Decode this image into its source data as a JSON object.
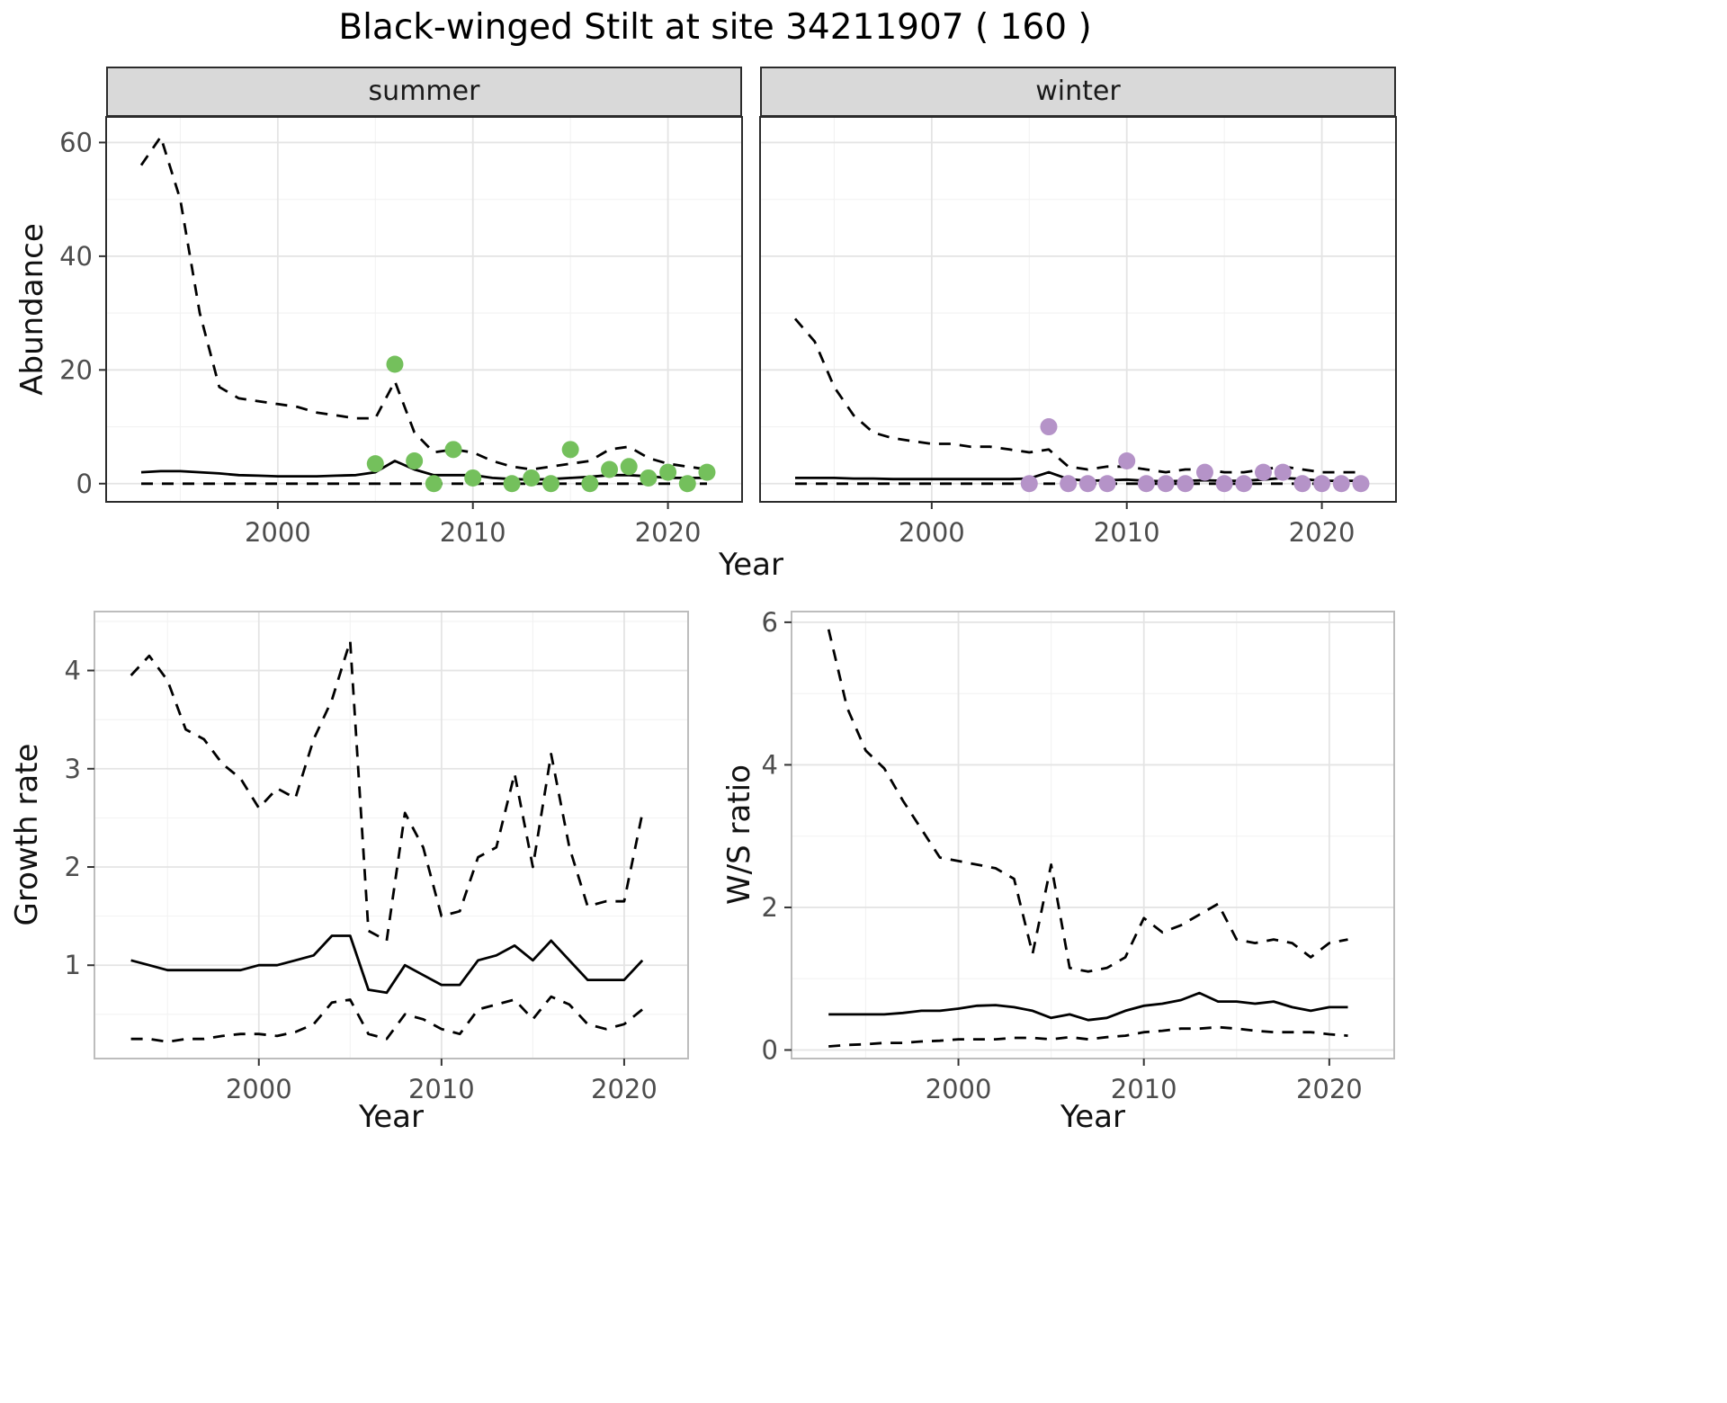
{
  "title": "Black-winged Stilt at site 34211907 ( 160 )",
  "facets": {
    "summer": "summer",
    "winter": "winter"
  },
  "labels": {
    "x": "Year",
    "y_abundance": "Abundance",
    "y_growth": "Growth rate",
    "y_ws": "W/S ratio"
  },
  "colors": {
    "summer_point": "#74c05c",
    "winter_point": "#b593c8",
    "line": "#000000",
    "grid_major": "#e4e4e4",
    "grid_minor": "#f2f2f2",
    "strip_bg": "#d9d9d9",
    "tick": "#333333",
    "tick_label": "#4d4d4d"
  },
  "chart_data": [
    {
      "id": "summer",
      "type": "line",
      "facet_label": "summer",
      "xlabel": "Year",
      "ylabel": "Abundance",
      "xlim": [
        1991.2,
        2023.8
      ],
      "ylim": [
        -3.2,
        64.5
      ],
      "xticks": [
        2000,
        2010,
        2020
      ],
      "yticks": [
        0,
        20,
        40,
        60
      ],
      "grid": true,
      "legend": "none",
      "years": [
        1993,
        1994,
        1995,
        1996,
        1997,
        1998,
        1999,
        2000,
        2001,
        2002,
        2003,
        2004,
        2005,
        2006,
        2007,
        2008,
        2009,
        2010,
        2011,
        2012,
        2013,
        2014,
        2015,
        2016,
        2017,
        2018,
        2019,
        2020,
        2021,
        2022
      ],
      "series": [
        {
          "name": "upper_95ci",
          "style": "dashed",
          "values": [
            56,
            61,
            50,
            30,
            17,
            15,
            14.5,
            14,
            13.5,
            12.5,
            12,
            11.5,
            11.5,
            18,
            9,
            5.5,
            6,
            5.5,
            4,
            3,
            2.5,
            3,
            3.5,
            4,
            6,
            6.5,
            4.5,
            3.5,
            3,
            2.5
          ]
        },
        {
          "name": "median",
          "style": "solid",
          "values": [
            2,
            2.2,
            2.2,
            2,
            1.8,
            1.5,
            1.4,
            1.3,
            1.3,
            1.3,
            1.4,
            1.5,
            2,
            4,
            2.5,
            1.5,
            1.5,
            1.5,
            1,
            0.8,
            0.7,
            0.8,
            1,
            1.2,
            1.5,
            1.5,
            1.3,
            1,
            1,
            1
          ]
        },
        {
          "name": "lower_95ci",
          "style": "dashed",
          "values": [
            0,
            0,
            0,
            0,
            0,
            0,
            0,
            0,
            0,
            0,
            0,
            0,
            0,
            0,
            0,
            0,
            0,
            0,
            0,
            0,
            0,
            0,
            0,
            0,
            0,
            0,
            0,
            0,
            0,
            0
          ]
        }
      ],
      "points": {
        "name": "observed-counts",
        "color_key": "summer_point",
        "x": [
          2005,
          2006,
          2007,
          2008,
          2009,
          2010,
          2012,
          2013,
          2014,
          2015,
          2016,
          2017,
          2018,
          2019,
          2020,
          2021,
          2022
        ],
        "y": [
          3.5,
          21,
          4,
          0,
          6,
          1,
          0,
          1,
          0,
          6,
          0,
          2.5,
          3,
          1,
          2,
          0,
          2
        ]
      }
    },
    {
      "id": "winter",
      "type": "line",
      "facet_label": "winter",
      "xlabel": "Year",
      "ylabel": "Abundance",
      "xlim": [
        1991.2,
        2023.8
      ],
      "ylim": [
        -3.2,
        64.5
      ],
      "xticks": [
        2000,
        2010,
        2020
      ],
      "yticks": [
        0,
        20,
        40,
        60
      ],
      "grid": true,
      "legend": "none",
      "years": [
        1993,
        1994,
        1995,
        1996,
        1997,
        1998,
        1999,
        2000,
        2001,
        2002,
        2003,
        2004,
        2005,
        2006,
        2007,
        2008,
        2009,
        2010,
        2011,
        2012,
        2013,
        2014,
        2015,
        2016,
        2017,
        2018,
        2019,
        2020,
        2021,
        2022
      ],
      "series": [
        {
          "name": "upper_95ci",
          "style": "dashed",
          "values": [
            29,
            25,
            17,
            12,
            9,
            8,
            7.5,
            7,
            7,
            6.5,
            6.5,
            6,
            5.5,
            6,
            3,
            2.5,
            3,
            3,
            2.5,
            2,
            2.5,
            2.5,
            2,
            2,
            2.5,
            3,
            2.5,
            2,
            2,
            2
          ]
        },
        {
          "name": "median",
          "style": "solid",
          "values": [
            1,
            1,
            1,
            0.9,
            0.9,
            0.8,
            0.8,
            0.8,
            0.8,
            0.8,
            0.8,
            0.8,
            0.9,
            2,
            0.8,
            0.5,
            0.6,
            0.7,
            0.5,
            0.4,
            0.5,
            0.6,
            0.5,
            0.5,
            0.7,
            1,
            0.8,
            0.5,
            0.5,
            0.5
          ]
        },
        {
          "name": "lower_95ci",
          "style": "dashed",
          "values": [
            0,
            0,
            0,
            0,
            0,
            0,
            0,
            0,
            0,
            0,
            0,
            0,
            0,
            0,
            0,
            0,
            0,
            0,
            0,
            0,
            0,
            0,
            0,
            0,
            0,
            0,
            0,
            0,
            0,
            0
          ]
        }
      ],
      "points": {
        "name": "observed-counts",
        "color_key": "winter_point",
        "x": [
          2005,
          2006,
          2007,
          2008,
          2009,
          2010,
          2011,
          2012,
          2013,
          2014,
          2015,
          2016,
          2017,
          2018,
          2019,
          2020,
          2021,
          2022
        ],
        "y": [
          0,
          10,
          0,
          0,
          0,
          4,
          0,
          0,
          0,
          2,
          0,
          0,
          2,
          2,
          0,
          0,
          0,
          0
        ]
      }
    },
    {
      "id": "growth",
      "type": "line",
      "facet_label": "",
      "xlabel": "Year",
      "ylabel": "Growth rate",
      "xlim": [
        1991.0,
        2023.5
      ],
      "ylim": [
        0.05,
        4.6
      ],
      "xticks": [
        2000,
        2010,
        2020
      ],
      "yticks": [
        1,
        2,
        3,
        4
      ],
      "grid": true,
      "legend": "none",
      "years": [
        1993,
        1994,
        1995,
        1996,
        1997,
        1998,
        1999,
        2000,
        2001,
        2002,
        2003,
        2004,
        2005,
        2006,
        2007,
        2008,
        2009,
        2010,
        2011,
        2012,
        2013,
        2014,
        2015,
        2016,
        2017,
        2018,
        2019,
        2020,
        2021
      ],
      "series": [
        {
          "name": "upper_95ci",
          "style": "dashed",
          "values": [
            3.95,
            4.15,
            3.9,
            3.4,
            3.3,
            3.05,
            2.9,
            2.6,
            2.8,
            2.7,
            3.3,
            3.7,
            4.3,
            1.35,
            1.25,
            2.55,
            2.2,
            1.5,
            1.55,
            2.1,
            2.2,
            2.95,
            2.0,
            3.15,
            2.2,
            1.6,
            1.65,
            1.65,
            2.55
          ]
        },
        {
          "name": "median",
          "style": "solid",
          "values": [
            1.05,
            1.0,
            0.95,
            0.95,
            0.95,
            0.95,
            0.95,
            1.0,
            1.0,
            1.05,
            1.1,
            1.3,
            1.3,
            0.75,
            0.72,
            1.0,
            0.9,
            0.8,
            0.8,
            1.05,
            1.1,
            1.2,
            1.05,
            1.25,
            1.05,
            0.85,
            0.85,
            0.85,
            1.05
          ]
        },
        {
          "name": "lower_95ci",
          "style": "dashed",
          "values": [
            0.25,
            0.25,
            0.22,
            0.25,
            0.25,
            0.28,
            0.3,
            0.3,
            0.28,
            0.32,
            0.4,
            0.62,
            0.65,
            0.3,
            0.25,
            0.5,
            0.45,
            0.35,
            0.3,
            0.55,
            0.6,
            0.65,
            0.45,
            0.68,
            0.6,
            0.4,
            0.35,
            0.4,
            0.55
          ]
        }
      ]
    },
    {
      "id": "ws",
      "type": "line",
      "facet_label": "",
      "xlabel": "Year",
      "ylabel": "W/S ratio",
      "xlim": [
        1991.0,
        2023.5
      ],
      "ylim": [
        -0.12,
        6.15
      ],
      "xticks": [
        2000,
        2010,
        2020
      ],
      "yticks": [
        0,
        2,
        4,
        6
      ],
      "grid": true,
      "legend": "none",
      "years": [
        1993,
        1994,
        1995,
        1996,
        1997,
        1998,
        1999,
        2000,
        2001,
        2002,
        2003,
        2004,
        2005,
        2006,
        2007,
        2008,
        2009,
        2010,
        2011,
        2012,
        2013,
        2014,
        2015,
        2016,
        2017,
        2018,
        2019,
        2020,
        2021
      ],
      "series": [
        {
          "name": "upper_95ci",
          "style": "dashed",
          "values": [
            5.9,
            4.8,
            4.2,
            3.95,
            3.5,
            3.1,
            2.7,
            2.65,
            2.6,
            2.55,
            2.4,
            1.35,
            2.6,
            1.15,
            1.1,
            1.15,
            1.3,
            1.85,
            1.65,
            1.75,
            1.9,
            2.05,
            1.55,
            1.5,
            1.55,
            1.5,
            1.3,
            1.5,
            1.55
          ]
        },
        {
          "name": "median",
          "style": "solid",
          "values": [
            0.5,
            0.5,
            0.5,
            0.5,
            0.52,
            0.55,
            0.55,
            0.58,
            0.62,
            0.63,
            0.6,
            0.55,
            0.45,
            0.5,
            0.42,
            0.45,
            0.55,
            0.62,
            0.65,
            0.7,
            0.8,
            0.68,
            0.68,
            0.65,
            0.68,
            0.6,
            0.55,
            0.6,
            0.6
          ]
        },
        {
          "name": "lower_95ci",
          "style": "dashed",
          "values": [
            0.05,
            0.07,
            0.08,
            0.1,
            0.1,
            0.12,
            0.13,
            0.15,
            0.15,
            0.15,
            0.17,
            0.17,
            0.15,
            0.18,
            0.15,
            0.18,
            0.2,
            0.25,
            0.27,
            0.3,
            0.3,
            0.32,
            0.3,
            0.27,
            0.25,
            0.25,
            0.25,
            0.22,
            0.2
          ]
        }
      ]
    }
  ]
}
